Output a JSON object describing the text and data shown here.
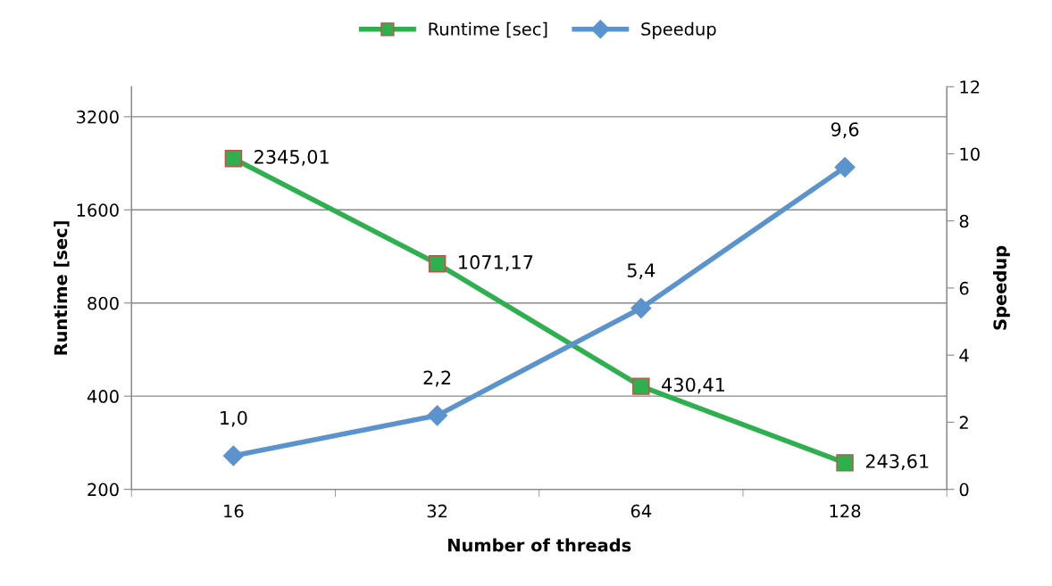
{
  "chart_data": {
    "type": "line",
    "xlabel": "Number of threads",
    "ylabel": "Runtime [sec]",
    "y2label": "Speedup",
    "categories": [
      "16",
      "32",
      "64",
      "128"
    ],
    "series": [
      {
        "name": "Runtime [sec]",
        "color": "#2eb04f",
        "marker": "square",
        "values": [
          2345.01,
          1071.17,
          430.41,
          243.61
        ],
        "value_labels": [
          "2345,01",
          "1071,17",
          "430,41",
          "243,61"
        ]
      },
      {
        "name": "Speedup",
        "color": "#5b93cf",
        "marker": "diamond",
        "axis": "y2",
        "values": [
          1.0,
          2.2,
          5.4,
          9.6
        ],
        "value_labels": [
          "1,0",
          "2,2",
          "5,4",
          "9,6"
        ]
      }
    ],
    "log": "y",
    "ylim": [
      200,
      4000
    ],
    "yticks": [
      200,
      400,
      800,
      1600,
      3200
    ],
    "y2lim": [
      0,
      12
    ],
    "y2ticks": [
      0,
      2,
      4,
      6,
      8,
      10,
      12
    ],
    "grid": "y",
    "legend": "top",
    "line_style": "solid"
  }
}
